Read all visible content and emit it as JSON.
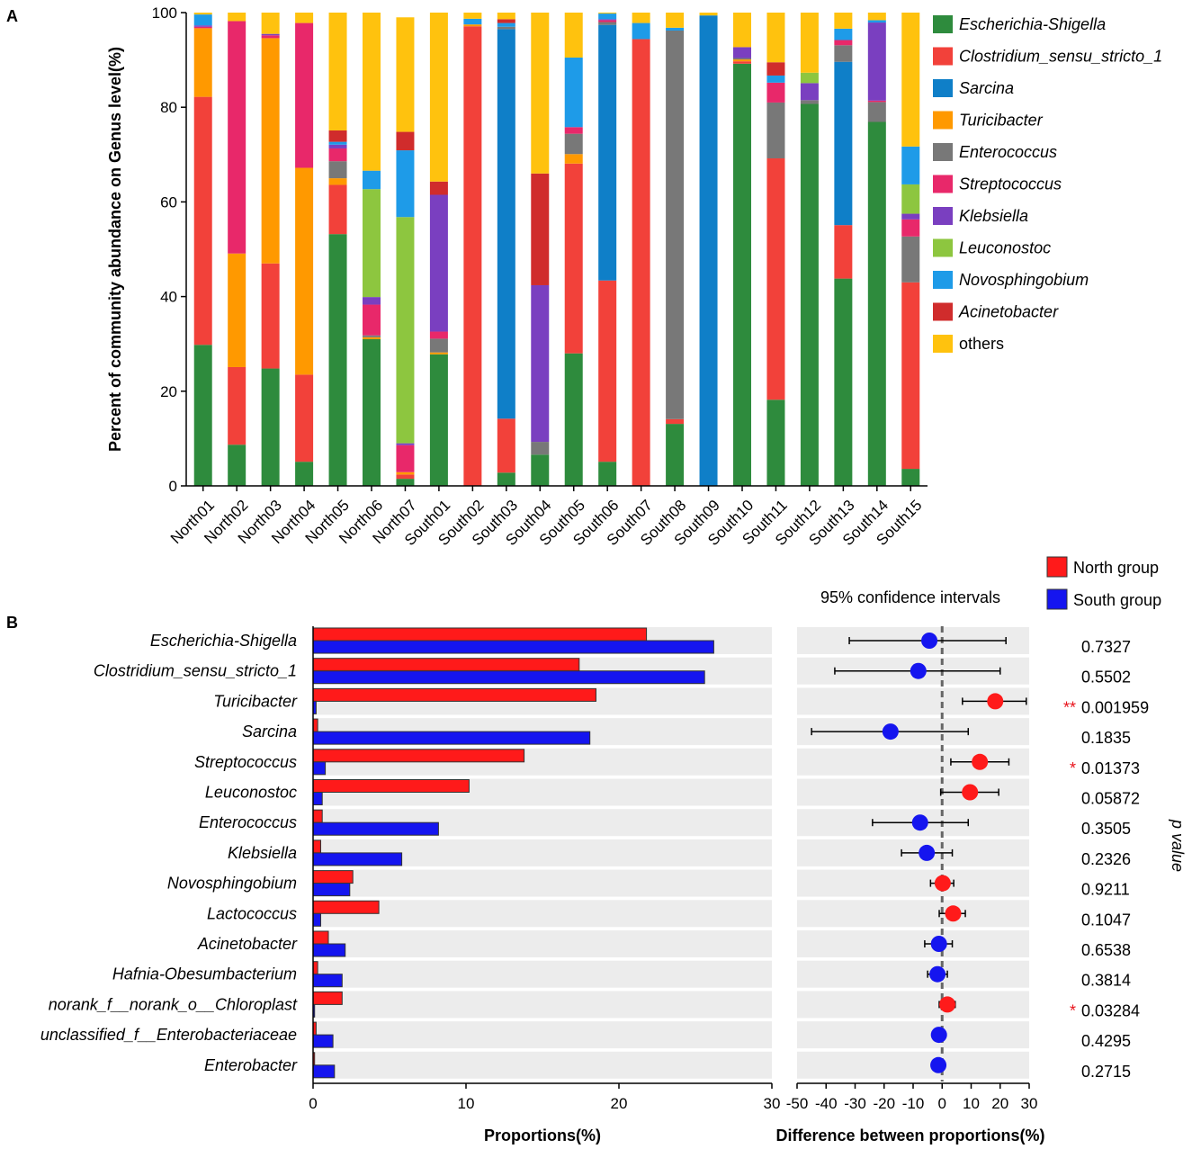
{
  "colors": {
    "Escherichia-Shigella": "#2e8b3d",
    "Clostridium_sensu_stricto_1": "#f2413a",
    "Sarcina": "#0f7fc8",
    "Turicibacter": "#ff9900",
    "Enterococcus": "#787878",
    "Streptococcus": "#e8286a",
    "Klebsiella": "#7a3fc0",
    "Leuconostoc": "#8dc63f",
    "Novosphingobium": "#1e9be8",
    "Acinetobacter": "#d02c2c",
    "others": "#ffc20e",
    "north": "#ff1a1a",
    "south": "#1515ef",
    "axis": "#000000",
    "band": "#ececec",
    "signif": "#e8141c"
  },
  "chart_data": [
    {
      "panel_label": "A",
      "type": "bar",
      "stacked": true,
      "ylabel": "Percent of community abundance on Genus level(%)",
      "ylim": [
        0,
        100
      ],
      "yticks": [
        0,
        20,
        40,
        60,
        80,
        100
      ],
      "legend_position": "right",
      "categories": [
        "North01",
        "North02",
        "North03",
        "North04",
        "North05",
        "North06",
        "North07",
        "South01",
        "South02",
        "South03",
        "South04",
        "South05",
        "South06",
        "South07",
        "South08",
        "South09",
        "South10",
        "South11",
        "South12",
        "South13",
        "South14",
        "South15"
      ],
      "series": [
        {
          "name": "Escherichia-Shigella",
          "values": [
            29.8,
            8.7,
            24.8,
            5.1,
            53.2,
            31.0,
            1.5,
            27.8,
            0.0,
            2.8,
            6.6,
            28.0,
            5.1,
            0.0,
            13.1,
            0.0,
            89.2,
            18.2,
            80.7,
            43.8,
            76.9,
            3.6
          ]
        },
        {
          "name": "Clostridium_sensu_stricto_1",
          "values": [
            52.4,
            16.4,
            22.2,
            18.4,
            10.4,
            0.0,
            0.9,
            0.0,
            97.1,
            11.4,
            0.0,
            40.1,
            38.3,
            94.4,
            1.0,
            0.0,
            0.5,
            51.0,
            0.0,
            11.3,
            0.0,
            39.4
          ]
        },
        {
          "name": "Sarcina",
          "values": [
            0.0,
            0.0,
            0.0,
            0.0,
            0.0,
            0.0,
            0.0,
            0.0,
            0.0,
            82.3,
            0.0,
            0.0,
            54.0,
            0.0,
            0.0,
            99.4,
            0.0,
            0.0,
            0.0,
            34.5,
            0.0,
            0.0
          ]
        },
        {
          "name": "Turicibacter",
          "values": [
            14.5,
            24.0,
            47.6,
            43.7,
            1.4,
            0.4,
            0.5,
            0.4,
            0.4,
            0.0,
            0.0,
            2.0,
            0.0,
            0.0,
            0.0,
            0.0,
            0.4,
            0.0,
            0.0,
            0.0,
            0.0,
            0.0
          ]
        },
        {
          "name": "Enterococcus",
          "values": [
            0.0,
            0.0,
            0.0,
            0.0,
            3.6,
            0.4,
            0.0,
            2.9,
            0.0,
            0.5,
            2.7,
            4.3,
            0.6,
            0.0,
            82.1,
            0.0,
            0.3,
            11.8,
            0.8,
            3.5,
            4.2,
            9.7
          ]
        },
        {
          "name": "Streptococcus",
          "values": [
            0.3,
            49.1,
            0.6,
            30.6,
            2.7,
            6.5,
            5.7,
            1.5,
            0.0,
            0.0,
            0.0,
            1.4,
            0.4,
            0.0,
            0.0,
            0.0,
            0.0,
            4.2,
            0.0,
            1.1,
            0.3,
            3.6
          ]
        },
        {
          "name": "Klebsiella",
          "values": [
            0.3,
            0.0,
            0.3,
            0.0,
            0.8,
            1.6,
            0.4,
            28.9,
            0.0,
            0.0,
            33.1,
            0.0,
            0.2,
            0.0,
            0.0,
            0.0,
            2.3,
            0.0,
            3.6,
            0.0,
            16.5,
            1.2
          ]
        },
        {
          "name": "Leuconostoc",
          "values": [
            0.0,
            0.0,
            0.0,
            0.0,
            0.0,
            22.8,
            47.8,
            0.0,
            0.0,
            0.0,
            0.0,
            0.0,
            0.0,
            0.0,
            0.0,
            0.0,
            0.0,
            0.0,
            2.2,
            0.0,
            0.0,
            6.2
          ]
        },
        {
          "name": "Novosphingobium",
          "values": [
            2.3,
            0.0,
            0.0,
            0.0,
            0.6,
            3.9,
            14.1,
            0.0,
            1.2,
            0.8,
            0.0,
            14.7,
            1.2,
            3.4,
            0.6,
            0.0,
            0.0,
            1.5,
            0.0,
            2.4,
            0.5,
            8.0
          ]
        },
        {
          "name": "Acinetobacter",
          "values": [
            0.0,
            0.0,
            0.0,
            0.0,
            2.4,
            0.0,
            3.9,
            2.8,
            0.0,
            0.8,
            23.6,
            0.0,
            0.0,
            0.0,
            0.0,
            0.0,
            0.0,
            2.8,
            0.0,
            0.0,
            0.0,
            0.0
          ]
        },
        {
          "name": "others",
          "values": [
            0.4,
            1.8,
            4.5,
            2.2,
            24.9,
            33.4,
            24.2,
            35.7,
            1.3,
            1.4,
            34.0,
            9.5,
            0.2,
            2.2,
            3.2,
            0.6,
            7.3,
            10.5,
            12.7,
            3.4,
            1.6,
            28.3
          ]
        }
      ]
    },
    {
      "panel_label": "B",
      "type": "bar",
      "orientation": "horizontal",
      "xlabel": "Proportions(%)",
      "xlim": [
        0,
        30
      ],
      "xticks": [
        0,
        10,
        20,
        30
      ],
      "legend_position": "top-right",
      "categories": [
        "Escherichia-Shigella",
        "Clostridium_sensu_stricto_1",
        "Turicibacter",
        "Sarcina",
        "Streptococcus",
        "Leuconostoc",
        "Enterococcus",
        "Klebsiella",
        "Novosphingobium",
        "Lactococcus",
        "Acinetobacter",
        "Hafnia-Obesumbacterium",
        "norank_f__norank_o__Chloroplast",
        "unclassified_f__Enterobacteriaceae",
        "Enterobacter"
      ],
      "series": [
        {
          "name": "North group",
          "values": [
            21.8,
            17.4,
            18.5,
            0.3,
            13.8,
            10.2,
            0.6,
            0.5,
            2.6,
            4.3,
            1.0,
            0.3,
            1.9,
            0.2,
            0.1
          ]
        },
        {
          "name": "South group",
          "values": [
            26.2,
            25.6,
            0.2,
            18.1,
            0.8,
            0.6,
            8.2,
            5.8,
            2.4,
            0.5,
            2.1,
            1.9,
            0.1,
            1.3,
            1.4
          ]
        }
      ]
    },
    {
      "panel_label": "B",
      "type": "scatter",
      "title": "95% confidence intervals",
      "xlabel": "Difference between proportions(%)",
      "xlim": [
        -50,
        30
      ],
      "xticks": [
        -50,
        -40,
        -30,
        -20,
        -10,
        0,
        10,
        20,
        30
      ],
      "ylabel": "p value",
      "points": [
        {
          "name": "Escherichia-Shigella",
          "diff": -4.4,
          "lo": -32,
          "hi": 22,
          "group": "South group",
          "p": "0.7327",
          "sig": ""
        },
        {
          "name": "Clostridium_sensu_stricto_1",
          "diff": -8.2,
          "lo": -37,
          "hi": 20,
          "group": "South group",
          "p": "0.5502",
          "sig": ""
        },
        {
          "name": "Turicibacter",
          "diff": 18.3,
          "lo": 7,
          "hi": 29,
          "group": "North group",
          "p": "0.001959",
          "sig": "**"
        },
        {
          "name": "Sarcina",
          "diff": -17.8,
          "lo": -45,
          "hi": 9,
          "group": "South group",
          "p": "0.1835",
          "sig": ""
        },
        {
          "name": "Streptococcus",
          "diff": 13.0,
          "lo": 3,
          "hi": 23,
          "group": "North group",
          "p": "0.01373",
          "sig": "*"
        },
        {
          "name": "Leuconostoc",
          "diff": 9.6,
          "lo": -0.5,
          "hi": 19.5,
          "group": "North group",
          "p": "0.05872",
          "sig": ""
        },
        {
          "name": "Enterococcus",
          "diff": -7.6,
          "lo": -24,
          "hi": 9,
          "group": "South group",
          "p": "0.3505",
          "sig": ""
        },
        {
          "name": "Klebsiella",
          "diff": -5.3,
          "lo": -14,
          "hi": 3.5,
          "group": "South group",
          "p": "0.2326",
          "sig": ""
        },
        {
          "name": "Novosphingobium",
          "diff": 0.2,
          "lo": -4,
          "hi": 4,
          "group": "North group",
          "p": "0.9211",
          "sig": ""
        },
        {
          "name": "Lactococcus",
          "diff": 3.8,
          "lo": -1,
          "hi": 8,
          "group": "North group",
          "p": "0.1047",
          "sig": ""
        },
        {
          "name": "Acinetobacter",
          "diff": -1.1,
          "lo": -6,
          "hi": 3.5,
          "group": "South group",
          "p": "0.6538",
          "sig": ""
        },
        {
          "name": "Hafnia-Obesumbacterium",
          "diff": -1.6,
          "lo": -5,
          "hi": 1.8,
          "group": "South group",
          "p": "0.3814",
          "sig": ""
        },
        {
          "name": "norank_f__norank_o__Chloroplast",
          "diff": 1.8,
          "lo": -1,
          "hi": 4.5,
          "group": "North group",
          "p": "0.03284",
          "sig": "*"
        },
        {
          "name": "unclassified_f__Enterobacteriaceae",
          "diff": -1.1,
          "lo": -2.5,
          "hi": 0.3,
          "group": "South group",
          "p": "0.4295",
          "sig": ""
        },
        {
          "name": "Enterobacter",
          "diff": -1.3,
          "lo": -2.3,
          "hi": -0.3,
          "group": "South group",
          "p": "0.2715",
          "sig": ""
        }
      ]
    }
  ]
}
